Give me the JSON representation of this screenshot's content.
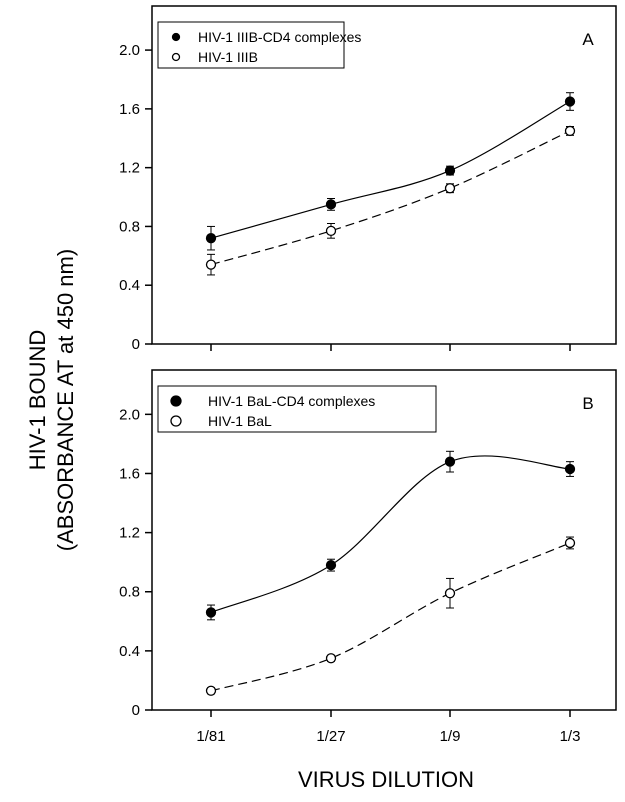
{
  "figure": {
    "ylabel_line1": "HIV-1 BOUND",
    "ylabel_line2": "(ABSORBANCE AT at 450 nm)",
    "xlabel": "VIRUS DILUTION"
  },
  "chart_data": [
    {
      "type": "line",
      "panel_label": "A",
      "categories": [
        "1/81",
        "1/27",
        "1/9",
        "1/3"
      ],
      "ylim": [
        0,
        2.3
      ],
      "yticks": [
        0,
        0.4,
        0.8,
        1.2,
        1.6,
        2.0
      ],
      "ytick_labels": [
        "0",
        "0.4",
        "0.8",
        "1.2",
        "1.6",
        "2.0"
      ],
      "show_x_tick_labels": false,
      "legend_position": "top-left",
      "series": [
        {
          "name": "HIV-1 IIIB-CD4 complexes",
          "marker": "filled",
          "line": "solid",
          "values": [
            0.72,
            0.95,
            1.18,
            1.65
          ],
          "errors": [
            0.08,
            0.04,
            0.03,
            0.06
          ]
        },
        {
          "name": "HIV-1 IIIB",
          "marker": "open",
          "line": "dashed",
          "values": [
            0.54,
            0.77,
            1.06,
            1.45
          ],
          "errors": [
            0.07,
            0.05,
            0.03,
            0.03
          ]
        }
      ]
    },
    {
      "type": "line",
      "panel_label": "B",
      "categories": [
        "1/81",
        "1/27",
        "1/9",
        "1/3"
      ],
      "ylim": [
        0,
        2.3
      ],
      "yticks": [
        0,
        0.4,
        0.8,
        1.2,
        1.6,
        2.0
      ],
      "ytick_labels": [
        "0",
        "0.4",
        "0.8",
        "1.2",
        "1.6",
        "2.0"
      ],
      "show_x_tick_labels": true,
      "legend_position": "top-left",
      "series": [
        {
          "name": "HIV-1 BaL-CD4 complexes",
          "marker": "filled",
          "line": "solid",
          "values": [
            0.66,
            0.98,
            1.68,
            1.63
          ],
          "errors": [
            0.05,
            0.04,
            0.07,
            0.05
          ]
        },
        {
          "name": "HIV-1 BaL",
          "marker": "open",
          "line": "dashed",
          "values": [
            0.13,
            0.35,
            0.79,
            1.13
          ],
          "errors": [
            0.02,
            0.02,
            0.1,
            0.04
          ]
        }
      ]
    }
  ]
}
